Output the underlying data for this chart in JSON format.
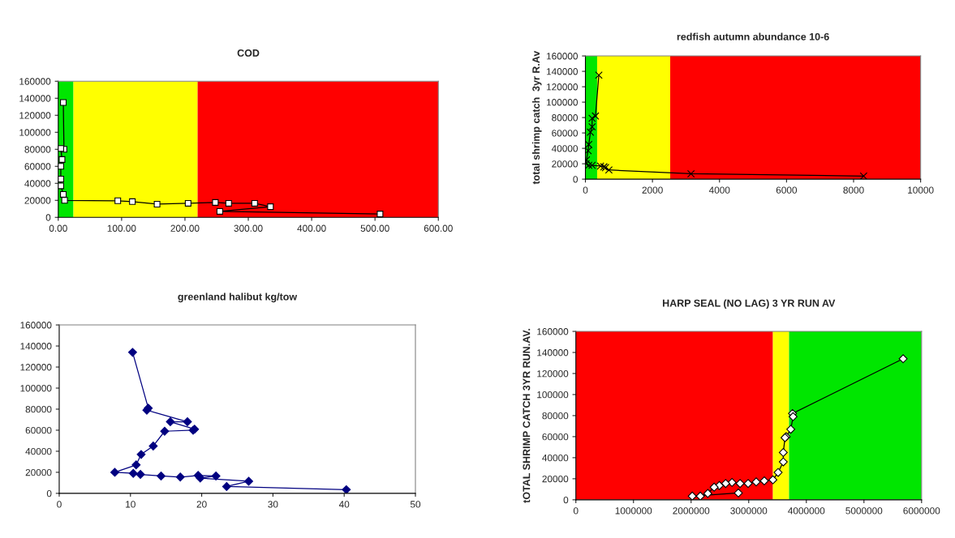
{
  "chart_data": [
    {
      "type": "line",
      "title": "COD",
      "xlim": [
        0,
        600
      ],
      "ylim": [
        0,
        160000
      ],
      "xticks": [
        {
          "value": 0,
          "label": "0.00"
        },
        {
          "value": 100,
          "label": "100.00"
        },
        {
          "value": 200,
          "label": "200.00"
        },
        {
          "value": 300,
          "label": "300.00"
        },
        {
          "value": 400,
          "label": "400.00"
        },
        {
          "value": 500,
          "label": "500.00"
        },
        {
          "value": 600,
          "label": "600.00"
        }
      ],
      "yticks": [
        0,
        20000,
        40000,
        60000,
        80000,
        100000,
        120000,
        140000,
        160000
      ],
      "bands": [
        {
          "axis": "x",
          "from": 0,
          "to": 24,
          "color": "#00e600"
        },
        {
          "axis": "x",
          "from": 24,
          "to": 220,
          "color": "#ffff00"
        },
        {
          "axis": "x",
          "from": 220,
          "to": 600,
          "color": "#ff0000"
        }
      ],
      "marker": "square",
      "grid": false,
      "legend": false,
      "series": [
        {
          "color": "#000000",
          "x": [
            8,
            9,
            4,
            6,
            4,
            4,
            4,
            8,
            10,
            94,
            117,
            156,
            205,
            248,
            269,
            310,
            335,
            255,
            508
          ],
          "values": [
            135000,
            80000,
            81000,
            68000,
            60000,
            45000,
            37000,
            27000,
            20000,
            19500,
            18500,
            15500,
            16500,
            17500,
            16500,
            16500,
            12500,
            7000,
            4000
          ]
        }
      ]
    },
    {
      "type": "line",
      "title": "redfish autumn abundance 10-6",
      "ylabel": "total shrimp catch  3yr R.Av",
      "xlim": [
        0,
        10000
      ],
      "ylim": [
        0,
        160000
      ],
      "xticks": [
        0,
        2000,
        4000,
        6000,
        8000,
        10000
      ],
      "yticks": [
        0,
        20000,
        40000,
        60000,
        80000,
        100000,
        120000,
        140000,
        160000
      ],
      "bands": [
        {
          "axis": "x",
          "from": 0,
          "to": 350,
          "color": "#00e600"
        },
        {
          "axis": "x",
          "from": 350,
          "to": 2530,
          "color": "#ffff00"
        },
        {
          "axis": "x",
          "from": 2530,
          "to": 10000,
          "color": "#ff0000"
        }
      ],
      "marker": "cross",
      "grid": false,
      "legend": false,
      "series": [
        {
          "color": "#000000",
          "x": [
            400,
            300,
            200,
            200,
            150,
            100,
            80,
            30,
            20,
            100,
            200,
            450,
            550,
            600,
            700,
            3150,
            8300
          ],
          "values": [
            135000,
            82000,
            79000,
            68000,
            61000,
            45000,
            37000,
            25000,
            20000,
            18000,
            18000,
            17000,
            16000,
            15000,
            12000,
            7000,
            4000
          ]
        }
      ]
    },
    {
      "type": "line",
      "title": "greenland halibut kg/tow",
      "xlim": [
        0,
        50
      ],
      "ylim": [
        0,
        160000
      ],
      "xticks": [
        0,
        10,
        20,
        30,
        40,
        50
      ],
      "yticks": [
        0,
        20000,
        40000,
        60000,
        80000,
        100000,
        120000,
        140000,
        160000
      ],
      "marker": "diamond",
      "grid": false,
      "legend": false,
      "series": [
        {
          "color": "#000080",
          "x": [
            10.3,
            12.5,
            12.3,
            18,
            15.6,
            19,
            18.8,
            14.8,
            13.2,
            11.5,
            10.8,
            7.8,
            10.4,
            11.4,
            14.3,
            17,
            19.5,
            22,
            19.8,
            26.6,
            23.5,
            40.3
          ],
          "values": [
            134000,
            81000,
            79000,
            68000,
            68000,
            61000,
            60000,
            59000,
            45000,
            37000,
            27000,
            20000,
            19000,
            18000,
            16500,
            15500,
            17000,
            16500,
            14500,
            11500,
            6500,
            3500
          ]
        }
      ]
    },
    {
      "type": "line",
      "title": "HARP SEAL (NO LAG) 3 YR RUN AV",
      "ylabel": "tOTAL SHRIMP CATCH 3YR RUN.AV.",
      "xlim": [
        0,
        6000000
      ],
      "ylim": [
        0,
        160000
      ],
      "xticks": [
        0,
        1000000,
        2000000,
        3000000,
        4000000,
        5000000,
        6000000
      ],
      "yticks": [
        0,
        20000,
        40000,
        60000,
        80000,
        100000,
        120000,
        140000,
        160000
      ],
      "bands": [
        {
          "axis": "x",
          "from": 0,
          "to": 3420000,
          "color": "#ff0000"
        },
        {
          "axis": "x",
          "from": 3420000,
          "to": 3700000,
          "color": "#ffff00"
        },
        {
          "axis": "x",
          "from": 3700000,
          "to": 6000000,
          "color": "#00e600"
        }
      ],
      "marker": "diamond",
      "grid": false,
      "legend": false,
      "series": [
        {
          "color": "#000000",
          "x": [
            5680000,
            3760000,
            3770000,
            3730000,
            3650000,
            3630000,
            3600000,
            3600000,
            3510000,
            3420000,
            3270000,
            3130000,
            2990000,
            2850000,
            2710000,
            2600000,
            2490000,
            2400000,
            2290000,
            2160000,
            2020000,
            2820000
          ],
          "values": [
            134000,
            82000,
            79000,
            67000,
            60000,
            59000,
            45000,
            36000,
            26000,
            19000,
            18000,
            17000,
            15500,
            15500,
            16500,
            15500,
            13500,
            12000,
            6000,
            3500,
            3500,
            6500
          ]
        }
      ]
    }
  ]
}
